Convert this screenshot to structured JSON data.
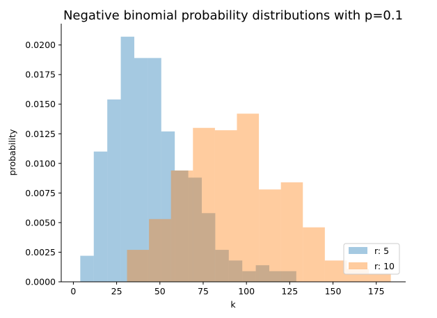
{
  "chart_data": {
    "type": "bar",
    "title": "Negative binomial probability distributions with p=0.1",
    "xlabel": "k",
    "ylabel": "probability",
    "xlim": [
      -7,
      192
    ],
    "ylim": [
      0,
      0.0218
    ],
    "xticks": [
      0,
      25,
      50,
      75,
      100,
      125,
      150,
      175
    ],
    "yticks": [
      0.0,
      0.0025,
      0.005,
      0.0075,
      0.01,
      0.0125,
      0.015,
      0.0175,
      0.02
    ],
    "ytick_labels": [
      "0.0000",
      "0.0025",
      "0.0050",
      "0.0075",
      "0.0100",
      "0.0125",
      "0.0150",
      "0.0175",
      "0.0200"
    ],
    "grid": false,
    "legend_position": "lower-right",
    "series": [
      {
        "name": "r: 5",
        "color": "#1f77b4",
        "alpha": 0.4,
        "bins": [
          {
            "x0": 4.0,
            "x1": 11.8,
            "value": 0.0022
          },
          {
            "x0": 11.8,
            "x1": 19.6,
            "value": 0.011
          },
          {
            "x0": 19.6,
            "x1": 27.4,
            "value": 0.0154
          },
          {
            "x0": 27.4,
            "x1": 35.2,
            "value": 0.0207
          },
          {
            "x0": 35.2,
            "x1": 43.0,
            "value": 0.0189
          },
          {
            "x0": 43.0,
            "x1": 50.8,
            "value": 0.0189
          },
          {
            "x0": 50.8,
            "x1": 58.6,
            "value": 0.0127
          },
          {
            "x0": 58.6,
            "x1": 66.4,
            "value": 0.0094
          },
          {
            "x0": 66.4,
            "x1": 74.2,
            "value": 0.0088
          },
          {
            "x0": 74.2,
            "x1": 82.0,
            "value": 0.0058
          },
          {
            "x0": 82.0,
            "x1": 89.8,
            "value": 0.0027
          },
          {
            "x0": 89.8,
            "x1": 97.6,
            "value": 0.0018
          },
          {
            "x0": 97.6,
            "x1": 105.4,
            "value": 0.0009
          },
          {
            "x0": 105.4,
            "x1": 113.2,
            "value": 0.0014
          },
          {
            "x0": 113.2,
            "x1": 121.0,
            "value": 0.0009
          },
          {
            "x0": 121.0,
            "x1": 128.8,
            "value": 0.0009
          }
        ]
      },
      {
        "name": "r: 10",
        "color": "#ff7f0e",
        "alpha": 0.4,
        "bins": [
          {
            "x0": 31.0,
            "x1": 43.7,
            "value": 0.0027
          },
          {
            "x0": 43.7,
            "x1": 56.4,
            "value": 0.0053
          },
          {
            "x0": 56.4,
            "x1": 69.1,
            "value": 0.0094
          },
          {
            "x0": 69.1,
            "x1": 81.8,
            "value": 0.013
          },
          {
            "x0": 81.8,
            "x1": 94.5,
            "value": 0.0128
          },
          {
            "x0": 94.5,
            "x1": 107.2,
            "value": 0.0142
          },
          {
            "x0": 107.2,
            "x1": 119.9,
            "value": 0.0078
          },
          {
            "x0": 119.9,
            "x1": 132.6,
            "value": 0.0084
          },
          {
            "x0": 132.6,
            "x1": 145.3,
            "value": 0.0046
          },
          {
            "x0": 145.3,
            "x1": 158.0,
            "value": 0.0018
          },
          {
            "x0": 158.0,
            "x1": 170.7,
            "value": 0.0011
          },
          {
            "x0": 170.7,
            "x1": 183.4,
            "value": 0.0007
          }
        ]
      }
    ]
  }
}
